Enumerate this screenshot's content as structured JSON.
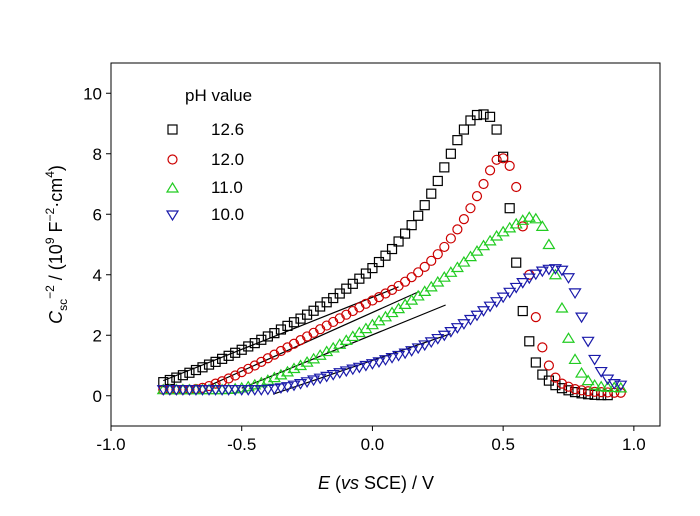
{
  "chart_data": {
    "type": "scatter",
    "xlabel": {
      "italic": "E",
      "mid1": " (",
      "vs": "vs",
      "mid2": " SCE) / V"
    },
    "ylabel": {
      "C": "C",
      "sub": "sc",
      "sup1": "−2",
      "mid": " / (10",
      "sup2": "9",
      "mid2": " F",
      "sup3": "−2",
      "mid3": "·cm",
      "sup4": "4",
      "end": ")"
    },
    "xlim": [
      -1.0,
      1.1
    ],
    "ylim": [
      -1,
      11
    ],
    "xticks": [
      -1.0,
      -0.5,
      0.0,
      0.5,
      1.0
    ],
    "xtick_labels": [
      "-1.0",
      "-0.5",
      "0.0",
      "0.5",
      "1.0"
    ],
    "yticks": [
      0,
      2,
      4,
      6,
      8,
      10
    ],
    "ytick_labels": [
      "0",
      "2",
      "4",
      "6",
      "8",
      "10"
    ],
    "legend_title": "pH value",
    "legend_position": "top-left",
    "series": [
      {
        "name": "12.6",
        "marker": "square",
        "color": "#000000",
        "x": [
          -0.8,
          -0.775,
          -0.75,
          -0.725,
          -0.7,
          -0.675,
          -0.65,
          -0.625,
          -0.6,
          -0.575,
          -0.55,
          -0.525,
          -0.5,
          -0.475,
          -0.45,
          -0.425,
          -0.4,
          -0.375,
          -0.35,
          -0.325,
          -0.3,
          -0.275,
          -0.25,
          -0.225,
          -0.2,
          -0.175,
          -0.15,
          -0.125,
          -0.1,
          -0.075,
          -0.05,
          -0.025,
          0.0,
          0.025,
          0.05,
          0.075,
          0.1,
          0.125,
          0.15,
          0.175,
          0.2,
          0.225,
          0.25,
          0.275,
          0.3,
          0.325,
          0.35,
          0.375,
          0.4,
          0.425,
          0.45,
          0.475,
          0.5,
          0.525,
          0.55,
          0.575,
          0.6,
          0.625,
          0.65,
          0.675,
          0.7,
          0.725,
          0.75,
          0.775,
          0.8,
          0.825,
          0.85,
          0.875,
          0.9
        ],
        "y": [
          0.45,
          0.52,
          0.6,
          0.68,
          0.76,
          0.85,
          0.94,
          1.03,
          1.12,
          1.22,
          1.32,
          1.42,
          1.52,
          1.63,
          1.74,
          1.85,
          1.96,
          2.07,
          2.19,
          2.31,
          2.43,
          2.55,
          2.68,
          2.81,
          2.95,
          3.09,
          3.23,
          3.38,
          3.54,
          3.7,
          3.87,
          4.04,
          4.22,
          4.42,
          4.63,
          4.85,
          5.1,
          5.36,
          5.64,
          5.95,
          6.3,
          6.68,
          7.1,
          7.55,
          8.0,
          8.45,
          8.8,
          9.1,
          9.28,
          9.3,
          9.22,
          8.8,
          7.9,
          6.2,
          4.4,
          2.8,
          1.8,
          1.1,
          0.7,
          0.5,
          0.35,
          0.25,
          0.18,
          0.12,
          0.08,
          0.05,
          0.03,
          0.02,
          0.02
        ]
      },
      {
        "name": "12.0",
        "marker": "circle",
        "color": "#cc0000",
        "x": [
          -0.8,
          -0.775,
          -0.75,
          -0.725,
          -0.7,
          -0.675,
          -0.65,
          -0.625,
          -0.6,
          -0.575,
          -0.55,
          -0.525,
          -0.5,
          -0.475,
          -0.45,
          -0.425,
          -0.4,
          -0.375,
          -0.35,
          -0.325,
          -0.3,
          -0.275,
          -0.25,
          -0.225,
          -0.2,
          -0.175,
          -0.15,
          -0.125,
          -0.1,
          -0.075,
          -0.05,
          -0.025,
          0.0,
          0.025,
          0.05,
          0.075,
          0.1,
          0.125,
          0.15,
          0.175,
          0.2,
          0.225,
          0.25,
          0.275,
          0.3,
          0.325,
          0.35,
          0.375,
          0.4,
          0.425,
          0.45,
          0.475,
          0.5,
          0.525,
          0.55,
          0.575,
          0.6,
          0.625,
          0.65,
          0.675,
          0.7,
          0.725,
          0.75,
          0.775,
          0.8,
          0.825,
          0.85,
          0.875,
          0.9,
          0.925,
          0.95
        ],
        "y": [
          0.2,
          0.2,
          0.2,
          0.2,
          0.2,
          0.22,
          0.26,
          0.32,
          0.4,
          0.48,
          0.57,
          0.67,
          0.78,
          0.89,
          1.0,
          1.12,
          1.24,
          1.36,
          1.48,
          1.6,
          1.72,
          1.84,
          1.96,
          2.08,
          2.2,
          2.32,
          2.44,
          2.56,
          2.68,
          2.8,
          2.92,
          3.04,
          3.15,
          3.26,
          3.38,
          3.5,
          3.63,
          3.77,
          3.92,
          4.08,
          4.26,
          4.46,
          4.68,
          4.92,
          5.2,
          5.5,
          5.84,
          6.2,
          6.6,
          7.0,
          7.45,
          7.8,
          7.85,
          7.6,
          6.9,
          5.6,
          4.0,
          2.6,
          1.6,
          1.0,
          0.6,
          0.4,
          0.3,
          0.22,
          0.18,
          0.15,
          0.13,
          0.12,
          0.11,
          0.1,
          0.1
        ]
      },
      {
        "name": "11.0",
        "marker": "triangle-up",
        "color": "#22cc22",
        "x": [
          -0.8,
          -0.775,
          -0.75,
          -0.725,
          -0.7,
          -0.675,
          -0.65,
          -0.625,
          -0.6,
          -0.575,
          -0.55,
          -0.525,
          -0.5,
          -0.475,
          -0.45,
          -0.425,
          -0.4,
          -0.375,
          -0.35,
          -0.325,
          -0.3,
          -0.275,
          -0.25,
          -0.225,
          -0.2,
          -0.175,
          -0.15,
          -0.125,
          -0.1,
          -0.075,
          -0.05,
          -0.025,
          0.0,
          0.025,
          0.05,
          0.075,
          0.1,
          0.125,
          0.15,
          0.175,
          0.2,
          0.225,
          0.25,
          0.275,
          0.3,
          0.325,
          0.35,
          0.375,
          0.4,
          0.425,
          0.45,
          0.475,
          0.5,
          0.525,
          0.55,
          0.575,
          0.6,
          0.625,
          0.65,
          0.675,
          0.7,
          0.725,
          0.75,
          0.775,
          0.8,
          0.825,
          0.85,
          0.875,
          0.9,
          0.925,
          0.95
        ],
        "y": [
          0.2,
          0.2,
          0.2,
          0.2,
          0.2,
          0.2,
          0.2,
          0.2,
          0.2,
          0.2,
          0.21,
          0.23,
          0.26,
          0.3,
          0.36,
          0.43,
          0.51,
          0.6,
          0.69,
          0.79,
          0.9,
          1.0,
          1.11,
          1.22,
          1.34,
          1.46,
          1.58,
          1.7,
          1.83,
          1.96,
          2.09,
          2.22,
          2.35,
          2.48,
          2.61,
          2.75,
          2.88,
          3.02,
          3.16,
          3.3,
          3.45,
          3.6,
          3.76,
          3.92,
          4.08,
          4.24,
          4.42,
          4.6,
          4.78,
          4.96,
          5.12,
          5.28,
          5.42,
          5.55,
          5.68,
          5.8,
          5.9,
          5.85,
          5.6,
          5.0,
          4.0,
          2.9,
          1.9,
          1.2,
          0.75,
          0.5,
          0.35,
          0.3,
          0.28,
          0.27,
          0.26
        ]
      },
      {
        "name": "10.0",
        "marker": "triangle-down",
        "color": "#1a1aaa",
        "x": [
          -0.8,
          -0.775,
          -0.75,
          -0.725,
          -0.7,
          -0.675,
          -0.65,
          -0.625,
          -0.6,
          -0.575,
          -0.55,
          -0.525,
          -0.5,
          -0.475,
          -0.45,
          -0.425,
          -0.4,
          -0.375,
          -0.35,
          -0.325,
          -0.3,
          -0.275,
          -0.25,
          -0.225,
          -0.2,
          -0.175,
          -0.15,
          -0.125,
          -0.1,
          -0.075,
          -0.05,
          -0.025,
          0.0,
          0.025,
          0.05,
          0.075,
          0.1,
          0.125,
          0.15,
          0.175,
          0.2,
          0.225,
          0.25,
          0.275,
          0.3,
          0.325,
          0.35,
          0.375,
          0.4,
          0.425,
          0.45,
          0.475,
          0.5,
          0.525,
          0.55,
          0.575,
          0.6,
          0.625,
          0.65,
          0.675,
          0.7,
          0.725,
          0.75,
          0.775,
          0.8,
          0.825,
          0.85,
          0.875,
          0.9,
          0.925,
          0.95
        ],
        "y": [
          0.2,
          0.2,
          0.2,
          0.2,
          0.2,
          0.2,
          0.2,
          0.2,
          0.2,
          0.2,
          0.2,
          0.2,
          0.2,
          0.2,
          0.2,
          0.2,
          0.21,
          0.23,
          0.26,
          0.3,
          0.35,
          0.4,
          0.46,
          0.52,
          0.58,
          0.64,
          0.7,
          0.76,
          0.82,
          0.88,
          0.94,
          1.0,
          1.06,
          1.12,
          1.19,
          1.26,
          1.33,
          1.41,
          1.49,
          1.58,
          1.68,
          1.78,
          1.89,
          2.0,
          2.12,
          2.25,
          2.38,
          2.52,
          2.66,
          2.81,
          2.96,
          3.11,
          3.26,
          3.42,
          3.58,
          3.74,
          3.89,
          4.02,
          4.12,
          4.18,
          4.2,
          4.15,
          3.9,
          3.4,
          2.6,
          1.8,
          1.2,
          0.8,
          0.55,
          0.4,
          0.35
        ]
      }
    ],
    "fit_lines": [
      {
        "x": [
          -0.8,
          0.1
        ],
        "y": [
          0.5,
          3.6
        ]
      },
      {
        "x": [
          -0.62,
          0.18
        ],
        "y": [
          0.35,
          3.45
        ]
      },
      {
        "x": [
          -0.5,
          0.28
        ],
        "y": [
          0.25,
          3.0
        ]
      },
      {
        "x": [
          -0.38,
          0.3
        ],
        "y": [
          0.05,
          2.05
        ]
      }
    ]
  }
}
